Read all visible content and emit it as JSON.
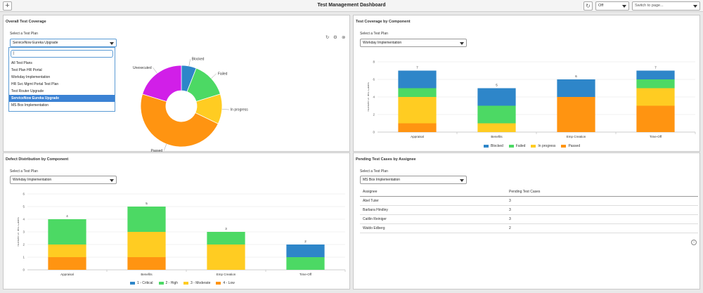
{
  "header": {
    "add_label": "+",
    "title": "Test Management Dashboard",
    "refresh_icon": "refresh-icon",
    "filter_value": "Off",
    "page_switch_placeholder": "Switch to page..."
  },
  "overall": {
    "title": "Overall Test Coverage",
    "select_label": "Select a Test Plan",
    "selected": "ServiceNow Eureka Upgrade",
    "search_value": "|",
    "options": [
      "All Test Plans",
      "Test Plan HR Portal",
      "Workday Implementation",
      "HR Svc Mgmt Portal Test Plan",
      "Test Router Upgrade",
      "ServiceNow Eureka Upgrade",
      "MS Box Implementation"
    ],
    "icons": [
      "refresh-icon",
      "gear-icon",
      "close-icon"
    ]
  },
  "coverage_component": {
    "title": "Test Coverage by Component",
    "select_label": "Select a Test Plan",
    "selected": "Workday Implementation"
  },
  "defect_distribution": {
    "title": "Defect Distribution by Component",
    "select_label": "Select a Test Plan",
    "selected": "Workday Implementation"
  },
  "pending": {
    "title": "Pending Test Cases by Assignee",
    "select_label": "Select a Test Plan",
    "selected": "MS Box Implementation",
    "columns": [
      "Assignee",
      "Pending Test Cases"
    ],
    "rows": [
      {
        "assignee": "Abel Tuter",
        "count": "3"
      },
      {
        "assignee": "Barbara Hindley",
        "count": "3"
      },
      {
        "assignee": "Caitlin Reiniger",
        "count": "3"
      },
      {
        "assignee": "Waldo Edberg",
        "count": "2"
      }
    ]
  },
  "chart_data": [
    {
      "type": "pie",
      "categories": [
        "Blocked",
        "Failed",
        "In progress",
        "Passed",
        "Unexecuted"
      ],
      "values": [
        5,
        12,
        10,
        40,
        17
      ],
      "colors": [
        "#2e86c9",
        "#4cd964",
        "#ffcc22",
        "#ff9411",
        "#d11fe8"
      ]
    },
    {
      "type": "bar",
      "stacked": true,
      "categories": [
        "Appraisal",
        "Benefits",
        "Emp Creation",
        "Time-Off"
      ],
      "series": [
        {
          "name": "Blocked",
          "values": [
            2,
            2,
            2,
            1
          ],
          "color": "#2e86c9"
        },
        {
          "name": "Failed",
          "values": [
            1,
            2,
            0,
            1
          ],
          "color": "#4cd964"
        },
        {
          "name": "In progress",
          "values": [
            3,
            1,
            0,
            2
          ],
          "color": "#ffcc22"
        },
        {
          "name": "Passed",
          "values": [
            1,
            0,
            4,
            3
          ],
          "color": "#ff9411"
        }
      ],
      "totals": [
        "7",
        "5",
        "6",
        "7"
      ],
      "yticks": [
        "0",
        "2",
        "4",
        "6",
        "8"
      ],
      "ylabel": "Number of Test Cases",
      "ylim": [
        0,
        8
      ]
    },
    {
      "type": "bar",
      "stacked": true,
      "categories": [
        "Appraisal",
        "Benefits",
        "Emp Creation",
        "Time-Off"
      ],
      "series": [
        {
          "name": "1 - Critical",
          "values": [
            0,
            0,
            0,
            1
          ],
          "color": "#2e86c9"
        },
        {
          "name": "2 - High",
          "values": [
            2,
            2,
            1,
            1
          ],
          "color": "#4cd964"
        },
        {
          "name": "3 - Moderate",
          "values": [
            1,
            2,
            2,
            0
          ],
          "color": "#ffcc22"
        },
        {
          "name": "4 - Low",
          "values": [
            1,
            1,
            0,
            0
          ],
          "color": "#ff9411"
        }
      ],
      "totals": [
        "4",
        "5",
        "3",
        "2"
      ],
      "yticks": [
        "0",
        "1",
        "2",
        "3",
        "4",
        "5",
        "6"
      ],
      "ylabel": "Number of Test Cases",
      "ylim": [
        0,
        6
      ]
    }
  ]
}
